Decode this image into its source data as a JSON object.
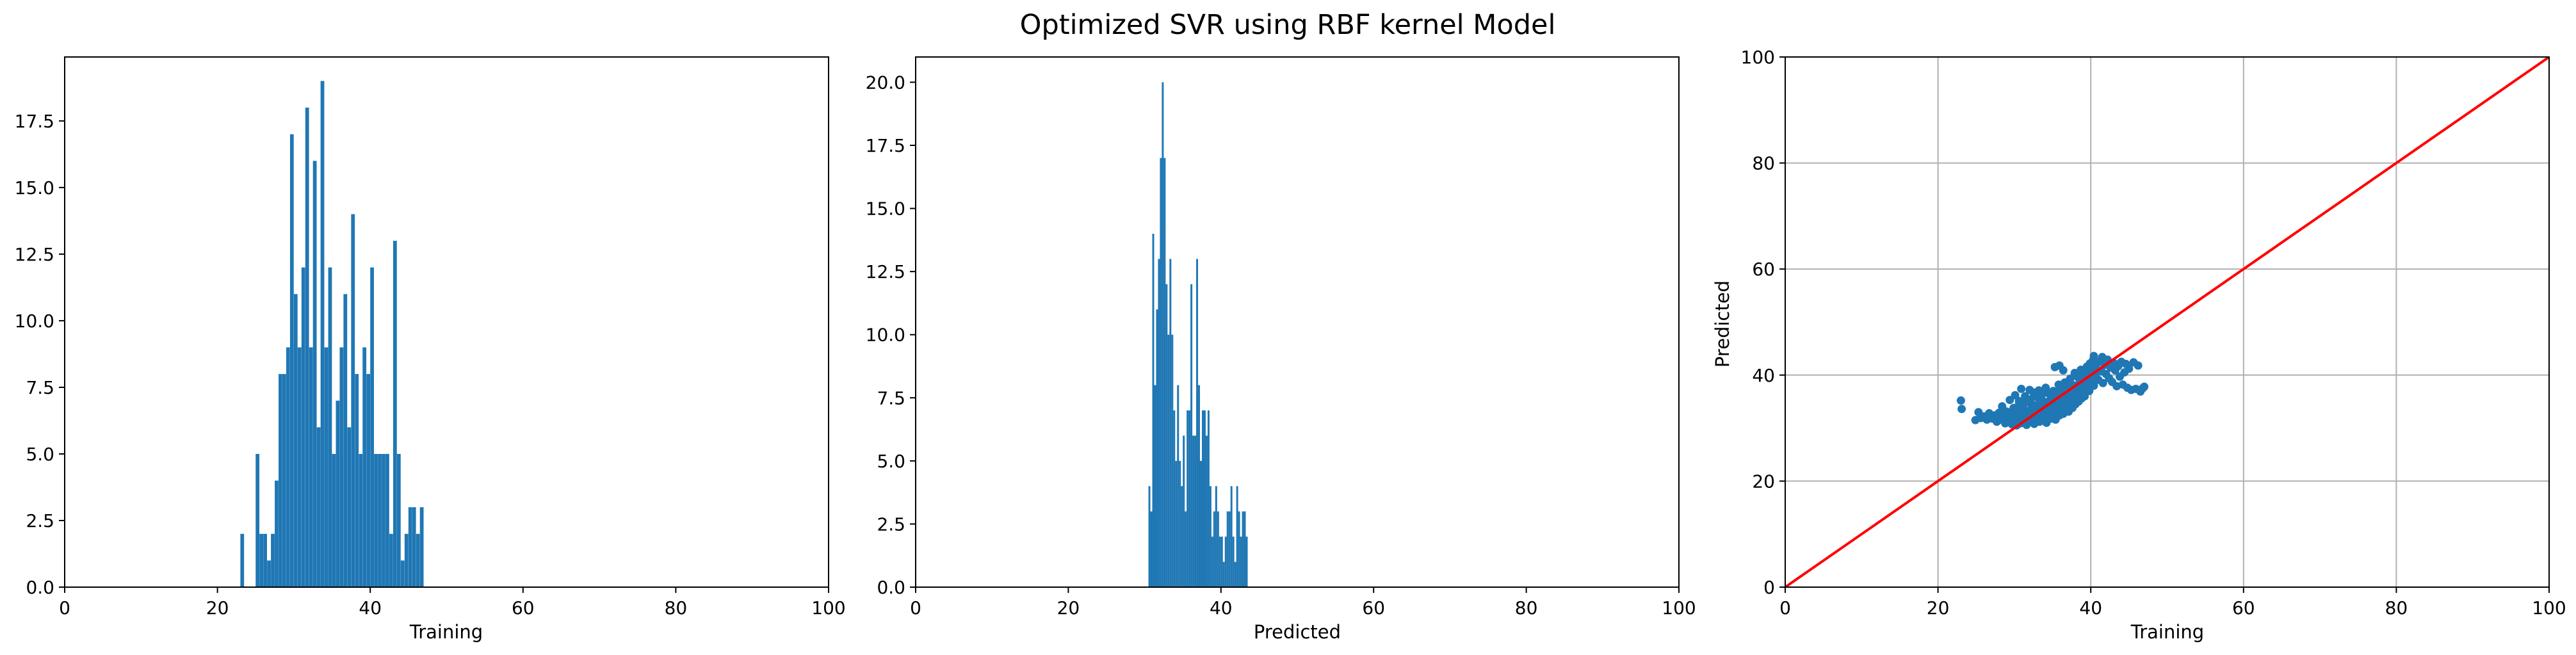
{
  "figure": {
    "title": "Optimized SVR using RBF kernel Model"
  },
  "colors": {
    "bar": "#1f77b4",
    "marker": "#1f77b4",
    "identity_line": "#ff0000",
    "grid": "#b0b0b0",
    "axis": "#000000"
  },
  "chart_data": [
    {
      "type": "bar",
      "title": "",
      "xlabel": "Training",
      "ylabel": "",
      "xlim": [
        0,
        100
      ],
      "ylim": [
        0,
        19.9
      ],
      "xticks": [
        0,
        20,
        40,
        60,
        80,
        100
      ],
      "yticks": [
        0.0,
        2.5,
        5.0,
        7.5,
        10.0,
        12.5,
        15.0,
        17.5
      ],
      "grid": false,
      "bin_width": 0.485,
      "x": [
        23.0,
        25.0,
        25.5,
        26.0,
        26.5,
        27.0,
        27.5,
        28.0,
        28.5,
        29.0,
        29.5,
        30.0,
        30.5,
        31.0,
        31.5,
        32.0,
        32.5,
        33.0,
        33.5,
        34.0,
        34.5,
        35.0,
        35.5,
        36.0,
        36.5,
        37.0,
        37.5,
        38.0,
        38.5,
        39.0,
        39.5,
        40.0,
        40.5,
        41.0,
        41.5,
        42.0,
        42.5,
        43.0,
        43.5,
        44.0,
        44.5,
        45.0,
        45.5,
        46.0,
        46.5
      ],
      "values": [
        2,
        5,
        2,
        2,
        1,
        2,
        4,
        8,
        8,
        9,
        17,
        11,
        9,
        12,
        18,
        9,
        16,
        6,
        19,
        9,
        12,
        5,
        7,
        9,
        11,
        6,
        14,
        8,
        5,
        9,
        8,
        12,
        5,
        5,
        5,
        5,
        2,
        13,
        5,
        1,
        2,
        3,
        3,
        2,
        3
      ]
    },
    {
      "type": "bar",
      "title": "",
      "xlabel": "Predicted",
      "ylabel": "",
      "xlim": [
        0,
        100
      ],
      "ylim": [
        0,
        21
      ],
      "xticks": [
        0,
        20,
        40,
        60,
        80,
        100
      ],
      "yticks": [
        0.0,
        2.5,
        5.0,
        7.5,
        10.0,
        12.5,
        15.0,
        17.5,
        20.0
      ],
      "grid": false,
      "bin_width": 0.25,
      "x": [
        30.5,
        30.75,
        31.0,
        31.25,
        31.5,
        31.75,
        32.0,
        32.25,
        32.5,
        32.75,
        33.0,
        33.25,
        33.5,
        33.75,
        34.0,
        34.25,
        34.5,
        34.75,
        35.0,
        35.25,
        35.5,
        35.75,
        36.0,
        36.25,
        36.5,
        36.75,
        37.0,
        37.25,
        37.5,
        37.75,
        38.0,
        38.25,
        38.5,
        38.75,
        39.0,
        39.25,
        39.5,
        39.75,
        40.0,
        40.25,
        40.5,
        40.75,
        41.0,
        41.25,
        41.5,
        41.75,
        42.0,
        42.25,
        42.5,
        42.75,
        43.0,
        43.25
      ],
      "values": [
        4,
        3,
        14,
        8,
        11,
        13,
        17,
        20,
        17,
        12,
        10,
        13,
        10,
        7,
        5,
        8,
        5,
        4,
        6,
        3,
        7,
        7,
        12,
        6,
        6,
        13,
        8,
        5,
        7,
        7,
        6,
        7,
        4,
        2,
        3,
        4,
        3,
        2,
        2,
        1,
        2,
        3,
        3,
        4,
        2,
        1,
        4,
        3,
        2,
        3,
        3,
        2
      ]
    },
    {
      "type": "scatter",
      "title": "",
      "xlabel": "Training",
      "ylabel": "Predicted",
      "xlim": [
        0,
        100
      ],
      "ylim": [
        0,
        100
      ],
      "xticks": [
        0,
        20,
        40,
        60,
        80,
        100
      ],
      "yticks": [
        0,
        20,
        40,
        60,
        80,
        100
      ],
      "grid": true,
      "reference_line": {
        "x": [
          0,
          100
        ],
        "y": [
          0,
          100
        ]
      },
      "points": [
        [
          23.0,
          35.2
        ],
        [
          23.1,
          33.6
        ],
        [
          24.9,
          31.5
        ],
        [
          25.3,
          33.0
        ],
        [
          25.6,
          31.9
        ],
        [
          26.0,
          32.2
        ],
        [
          26.4,
          31.6
        ],
        [
          26.7,
          32.8
        ],
        [
          27.1,
          31.8
        ],
        [
          27.4,
          32.4
        ],
        [
          27.7,
          31.2
        ],
        [
          28.0,
          32.9
        ],
        [
          28.2,
          31.6
        ],
        [
          28.4,
          34.1
        ],
        [
          28.6,
          32.3
        ],
        [
          28.8,
          30.9
        ],
        [
          29.0,
          33.1
        ],
        [
          29.2,
          31.7
        ],
        [
          29.4,
          35.3
        ],
        [
          29.5,
          32.5
        ],
        [
          29.7,
          30.7
        ],
        [
          29.9,
          33.8
        ],
        [
          30.0,
          31.4
        ],
        [
          30.1,
          36.2
        ],
        [
          30.2,
          32.8
        ],
        [
          30.3,
          30.5
        ],
        [
          30.4,
          34.0
        ],
        [
          30.5,
          31.9
        ],
        [
          30.6,
          35.1
        ],
        [
          30.7,
          33.2
        ],
        [
          30.8,
          30.9
        ],
        [
          30.9,
          37.4
        ],
        [
          31.0,
          32.1
        ],
        [
          31.1,
          34.6
        ],
        [
          31.2,
          31.0
        ],
        [
          31.3,
          33.5
        ],
        [
          31.4,
          36.0
        ],
        [
          31.5,
          32.7
        ],
        [
          31.6,
          30.6
        ],
        [
          31.7,
          34.9
        ],
        [
          31.8,
          31.8
        ],
        [
          31.9,
          33.0
        ],
        [
          32.0,
          37.2
        ],
        [
          32.1,
          35.4
        ],
        [
          32.2,
          31.3
        ],
        [
          32.3,
          33.9
        ],
        [
          32.4,
          32.5
        ],
        [
          32.5,
          36.7
        ],
        [
          32.6,
          30.8
        ],
        [
          32.7,
          34.3
        ],
        [
          32.8,
          31.7
        ],
        [
          32.9,
          33.3
        ],
        [
          33.0,
          35.8
        ],
        [
          33.1,
          32.0
        ],
        [
          33.2,
          37.1
        ],
        [
          33.3,
          31.2
        ],
        [
          33.4,
          34.5
        ],
        [
          33.5,
          32.9
        ],
        [
          33.6,
          36.3
        ],
        [
          33.7,
          31.5
        ],
        [
          33.8,
          33.7
        ],
        [
          33.9,
          35.0
        ],
        [
          34.0,
          32.3
        ],
        [
          34.1,
          37.6
        ],
        [
          34.2,
          31.0
        ],
        [
          34.3,
          34.1
        ],
        [
          34.4,
          33.2
        ],
        [
          34.5,
          36.5
        ],
        [
          34.6,
          32.6
        ],
        [
          34.7,
          35.3
        ],
        [
          34.8,
          31.8
        ],
        [
          34.9,
          34.7
        ],
        [
          35.0,
          33.4
        ],
        [
          35.1,
          37.0
        ],
        [
          35.2,
          32.1
        ],
        [
          35.3,
          35.7
        ],
        [
          35.4,
          31.6
        ],
        [
          35.5,
          34.4
        ],
        [
          35.6,
          36.8
        ],
        [
          35.7,
          33.0
        ],
        [
          35.8,
          38.2
        ],
        [
          35.9,
          32.4
        ],
        [
          36.0,
          35.1
        ],
        [
          36.1,
          33.7
        ],
        [
          36.2,
          37.3
        ],
        [
          36.3,
          34.0
        ],
        [
          36.4,
          32.7
        ],
        [
          36.5,
          36.1
        ],
        [
          36.6,
          38.6
        ],
        [
          36.7,
          33.5
        ],
        [
          36.8,
          35.5
        ],
        [
          36.9,
          34.3
        ],
        [
          37.0,
          37.8
        ],
        [
          37.1,
          33.1
        ],
        [
          37.2,
          36.4
        ],
        [
          37.3,
          39.3
        ],
        [
          37.4,
          34.8
        ],
        [
          37.5,
          36.9
        ],
        [
          37.6,
          33.8
        ],
        [
          37.7,
          38.1
        ],
        [
          37.8,
          35.2
        ],
        [
          37.9,
          40.4
        ],
        [
          38.0,
          34.5
        ],
        [
          38.1,
          37.5
        ],
        [
          38.2,
          36.2
        ],
        [
          38.3,
          39.6
        ],
        [
          38.4,
          35.0
        ],
        [
          38.5,
          38.4
        ],
        [
          38.6,
          36.6
        ],
        [
          38.7,
          41.0
        ],
        [
          38.8,
          35.6
        ],
        [
          38.9,
          38.8
        ],
        [
          39.0,
          37.1
        ],
        [
          39.1,
          40.0
        ],
        [
          39.2,
          36.0
        ],
        [
          39.3,
          39.2
        ],
        [
          39.4,
          37.7
        ],
        [
          39.5,
          41.6
        ],
        [
          39.6,
          38.3
        ],
        [
          39.7,
          40.6
        ],
        [
          39.8,
          37.0
        ],
        [
          39.9,
          42.2
        ],
        [
          40.0,
          38.9
        ],
        [
          40.1,
          41.3
        ],
        [
          40.2,
          39.5
        ],
        [
          40.3,
          42.8
        ],
        [
          40.4,
          38.0
        ],
        [
          40.5,
          40.3
        ],
        [
          40.6,
          39.8
        ],
        [
          40.7,
          42.0
        ],
        [
          40.8,
          41.1
        ],
        [
          41.0,
          39.1
        ],
        [
          41.2,
          42.6
        ],
        [
          41.4,
          40.7
        ],
        [
          41.6,
          38.5
        ],
        [
          41.8,
          41.9
        ],
        [
          42.0,
          40.2
        ],
        [
          42.2,
          42.9
        ],
        [
          42.4,
          39.4
        ],
        [
          42.6,
          41.4
        ],
        [
          42.8,
          38.7
        ],
        [
          43.0,
          42.3
        ],
        [
          43.2,
          40.9
        ],
        [
          43.4,
          37.9
        ],
        [
          43.6,
          41.7
        ],
        [
          43.8,
          39.7
        ],
        [
          44.0,
          42.5
        ],
        [
          44.2,
          38.2
        ],
        [
          44.4,
          40.5
        ],
        [
          44.6,
          42.1
        ],
        [
          44.8,
          37.6
        ],
        [
          45.0,
          41.2
        ],
        [
          45.3,
          37.2
        ],
        [
          45.6,
          42.4
        ],
        [
          45.9,
          37.4
        ],
        [
          46.2,
          41.8
        ],
        [
          46.5,
          36.9
        ],
        [
          46.8,
          37.5
        ],
        [
          47.0,
          37.8
        ],
        [
          41.5,
          43.4
        ],
        [
          40.4,
          43.6
        ],
        [
          35.3,
          41.5
        ],
        [
          35.9,
          41.8
        ],
        [
          36.4,
          40.9
        ]
      ]
    }
  ]
}
